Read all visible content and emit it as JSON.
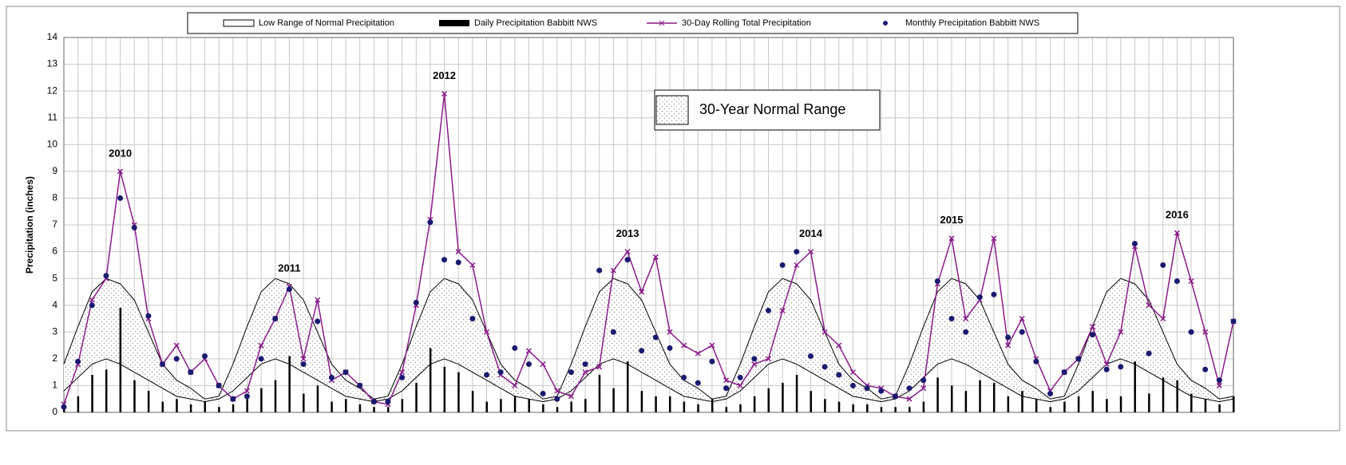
{
  "chart_data": {
    "type": "combo",
    "y_label": "Precipitation (inches)",
    "ylim": [
      0,
      14
    ],
    "yticks": [
      0,
      1,
      2,
      3,
      4,
      5,
      6,
      7,
      8,
      9,
      10,
      11,
      12,
      13,
      14
    ],
    "xlim": [
      0,
      83
    ],
    "xticks": [
      0,
      1,
      2,
      3,
      4,
      5,
      6,
      7,
      8,
      9,
      10,
      11,
      12,
      13,
      14,
      15,
      16,
      17,
      18,
      19,
      20,
      21,
      22,
      23,
      24,
      25,
      26,
      27,
      28,
      29,
      30,
      31,
      32,
      33,
      34,
      35,
      36,
      37,
      38,
      39,
      40,
      41,
      42,
      43,
      44,
      45,
      46,
      47,
      48,
      49,
      50,
      51,
      52,
      53,
      54,
      55,
      56,
      57,
      58,
      59,
      60,
      61,
      62,
      63,
      64,
      65,
      66,
      67,
      68,
      69,
      70,
      71,
      72,
      73,
      74,
      75,
      76,
      77,
      78,
      79,
      80,
      81,
      82,
      83
    ],
    "grid": true,
    "x": [
      0,
      1,
      2,
      3,
      4,
      5,
      6,
      7,
      8,
      9,
      10,
      11,
      12,
      13,
      14,
      15,
      16,
      17,
      18,
      19,
      20,
      21,
      22,
      23,
      24,
      25,
      26,
      27,
      28,
      29,
      30,
      31,
      32,
      33,
      34,
      35,
      36,
      37,
      38,
      39,
      40,
      41,
      42,
      43,
      44,
      45,
      46,
      47,
      48,
      49,
      50,
      51,
      52,
      53,
      54,
      55,
      56,
      57,
      58,
      59,
      60,
      61,
      62,
      63,
      64,
      65,
      66,
      67,
      68,
      69,
      70,
      71,
      72,
      73,
      74,
      75,
      76,
      77,
      78,
      79,
      80,
      81,
      82,
      83
    ],
    "range_label": "30-Year Normal Range",
    "year_labels": [
      "2010",
      "2011",
      "2012",
      "2013",
      "2014",
      "2015",
      "2016"
    ],
    "series": [
      {
        "name": "Low Range of Normal Precipitation",
        "kind": "band",
        "color": "#000000",
        "high": [
          1.8,
          3.2,
          4.5,
          5.0,
          4.8,
          4.2,
          3.0,
          1.8,
          1.2,
          0.9,
          0.5,
          0.6,
          1.8,
          3.2,
          4.5,
          5.0,
          4.8,
          4.2,
          3.0,
          1.8,
          1.2,
          0.9,
          0.5,
          0.6,
          1.8,
          3.2,
          4.5,
          5.0,
          4.8,
          4.2,
          3.0,
          1.8,
          1.2,
          0.9,
          0.5,
          0.6,
          1.8,
          3.2,
          4.5,
          5.0,
          4.8,
          4.2,
          3.0,
          1.8,
          1.2,
          0.9,
          0.5,
          0.6,
          1.8,
          3.2,
          4.5,
          5.0,
          4.8,
          4.2,
          3.0,
          1.8,
          1.2,
          0.9,
          0.5,
          0.6,
          1.8,
          3.2,
          4.5,
          5.0,
          4.8,
          4.2,
          3.0,
          1.8,
          1.2,
          0.9,
          0.5,
          0.6,
          1.8,
          3.2,
          4.5,
          5.0,
          4.8,
          4.2,
          3.0,
          1.8,
          1.2,
          0.9,
          0.5,
          0.6
        ],
        "low": [
          0.8,
          1.3,
          1.8,
          2.0,
          1.8,
          1.5,
          1.2,
          0.9,
          0.6,
          0.5,
          0.4,
          0.5,
          0.8,
          1.3,
          1.8,
          2.0,
          1.8,
          1.5,
          1.2,
          0.9,
          0.6,
          0.5,
          0.4,
          0.5,
          0.8,
          1.3,
          1.8,
          2.0,
          1.8,
          1.5,
          1.2,
          0.9,
          0.6,
          0.5,
          0.4,
          0.5,
          0.8,
          1.3,
          1.8,
          2.0,
          1.8,
          1.5,
          1.2,
          0.9,
          0.6,
          0.5,
          0.4,
          0.5,
          0.8,
          1.3,
          1.8,
          2.0,
          1.8,
          1.5,
          1.2,
          0.9,
          0.6,
          0.5,
          0.4,
          0.5,
          0.8,
          1.3,
          1.8,
          2.0,
          1.8,
          1.5,
          1.2,
          0.9,
          0.6,
          0.5,
          0.4,
          0.5,
          0.8,
          1.3,
          1.8,
          2.0,
          1.8,
          1.5,
          1.2,
          0.9,
          0.6,
          0.5,
          0.4,
          0.5
        ]
      },
      {
        "name": "Daily Precipitation Babbitt NWS",
        "kind": "bar",
        "color": "#000000",
        "values": [
          0.3,
          0.6,
          1.4,
          1.6,
          3.9,
          1.2,
          0.8,
          0.4,
          0.5,
          0.3,
          0.4,
          0.2,
          0.3,
          0.5,
          0.9,
          1.2,
          2.1,
          0.7,
          1.0,
          0.4,
          0.5,
          0.3,
          0.2,
          0.2,
          0.5,
          1.1,
          2.4,
          1.7,
          1.5,
          0.8,
          0.4,
          0.5,
          0.6,
          0.5,
          0.3,
          0.2,
          0.4,
          0.5,
          1.4,
          0.9,
          1.9,
          0.8,
          0.6,
          0.6,
          0.4,
          0.3,
          0.5,
          0.2,
          0.3,
          0.6,
          0.9,
          1.1,
          1.4,
          0.8,
          0.5,
          0.4,
          0.3,
          0.3,
          0.2,
          0.2,
          0.2,
          0.4,
          1.3,
          1.0,
          0.8,
          1.2,
          1.1,
          0.6,
          0.8,
          0.5,
          0.2,
          0.4,
          0.6,
          0.8,
          0.5,
          0.6,
          1.9,
          0.7,
          1.3,
          1.2,
          0.7,
          0.5,
          0.3,
          0.6
        ]
      },
      {
        "name": "30-Day Rolling Total Precipitation",
        "kind": "line",
        "color": "#8b1a8b",
        "values": [
          0.3,
          1.8,
          4.2,
          5.0,
          9.0,
          7.0,
          3.5,
          1.8,
          2.5,
          1.5,
          2.0,
          1.0,
          0.5,
          0.8,
          2.5,
          3.5,
          4.7,
          2.0,
          4.2,
          1.2,
          1.5,
          1.0,
          0.4,
          0.3,
          1.5,
          4.0,
          7.2,
          11.9,
          6.0,
          5.5,
          3.0,
          1.4,
          1.0,
          2.3,
          1.8,
          0.8,
          0.6,
          1.5,
          1.7,
          5.3,
          6.0,
          4.5,
          5.8,
          3.0,
          2.5,
          2.2,
          2.5,
          1.2,
          1.0,
          1.8,
          2.0,
          3.8,
          5.5,
          6.0,
          3.0,
          2.5,
          1.5,
          1.0,
          0.9,
          0.6,
          0.5,
          0.9,
          4.8,
          6.5,
          3.5,
          4.2,
          6.5,
          2.5,
          3.5,
          2.0,
          0.8,
          1.5,
          2.0,
          3.2,
          1.8,
          3.0,
          6.2,
          4.0,
          3.5,
          6.7,
          4.9,
          3.0,
          1.0,
          3.4
        ]
      },
      {
        "name": "Monthly Precipitation Babbitt NWS",
        "kind": "dots",
        "color": "#1a1a70",
        "values": [
          0.2,
          1.9,
          4.0,
          5.1,
          8.0,
          6.9,
          3.6,
          1.8,
          2.0,
          1.5,
          2.1,
          1.0,
          0.5,
          0.6,
          2.0,
          3.5,
          4.6,
          1.8,
          3.4,
          1.3,
          1.5,
          1.0,
          0.4,
          0.4,
          1.3,
          4.1,
          7.1,
          5.7,
          5.6,
          3.5,
          1.4,
          1.5,
          2.4,
          1.8,
          0.7,
          0.5,
          1.5,
          1.8,
          5.3,
          3.0,
          5.7,
          2.3,
          2.8,
          2.4,
          1.3,
          1.1,
          1.9,
          0.9,
          1.3,
          2.0,
          3.8,
          5.5,
          6.0,
          2.1,
          1.7,
          1.4,
          1.0,
          0.9,
          0.8,
          0.6,
          0.9,
          1.2,
          4.9,
          3.5,
          3.0,
          4.3,
          4.4,
          2.8,
          3.0,
          1.9,
          0.7,
          1.5,
          2.0,
          2.9,
          1.6,
          1.7,
          6.3,
          2.2,
          5.5,
          4.9,
          3.0,
          1.6,
          1.2,
          3.4
        ]
      }
    ]
  }
}
